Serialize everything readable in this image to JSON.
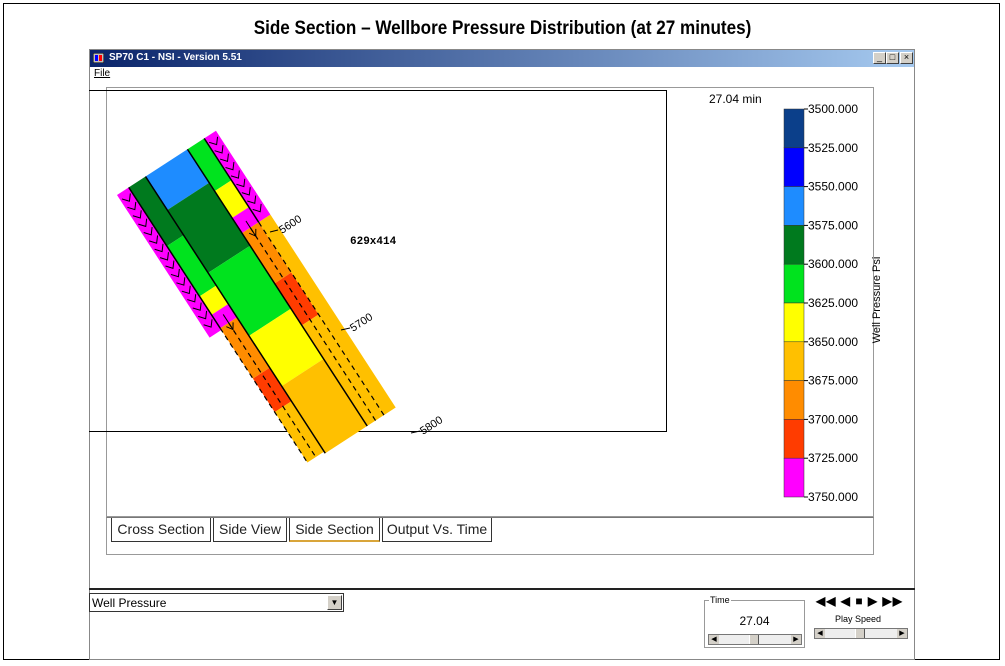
{
  "slide_title": "Side Section – Wellbore Pressure Distribution (at 27 minutes)",
  "window": {
    "title": "SP70 C1 - NSI - Version 5.51",
    "minimize_glyph": "_",
    "maximize_glyph": "□",
    "close_glyph": "×"
  },
  "menu": {
    "file_label": "File"
  },
  "plot": {
    "time_label": "27.04 min",
    "size_label": "629x414",
    "depth_labels": [
      "5600",
      "5700",
      "5800"
    ],
    "legend_title": "Well Pressure Psi",
    "legend_entries": [
      {
        "value": "3500.000",
        "color": "#0b3f8a"
      },
      {
        "value": "3525.000",
        "color": "#0000ff"
      },
      {
        "value": "3550.000",
        "color": "#1e8cff"
      },
      {
        "value": "3575.000",
        "color": "#007a1e"
      },
      {
        "value": "3600.000",
        "color": "#00e31e"
      },
      {
        "value": "3625.000",
        "color": "#ffff00"
      },
      {
        "value": "3650.000",
        "color": "#ffc000"
      },
      {
        "value": "3675.000",
        "color": "#ff8c00"
      },
      {
        "value": "3700.000",
        "color": "#ff3c00"
      },
      {
        "value": "3725.000",
        "color": "#ff00ff"
      },
      {
        "value": "3750.000",
        "color": ""
      }
    ]
  },
  "tabs": [
    "Cross Section",
    "Side View",
    "Side Section",
    "Output Vs. Time"
  ],
  "active_tab": "Side Section",
  "controls": {
    "variable_select": "Well Pressure",
    "time_group_label": "Time",
    "time_value": "27.04",
    "play_controls": "◀◀ ◀ ■ ▶ ▶▶",
    "play_speed_label": "Play Speed",
    "time_slider_fraction": 0.45,
    "speed_slider_fraction": 0.45
  }
}
